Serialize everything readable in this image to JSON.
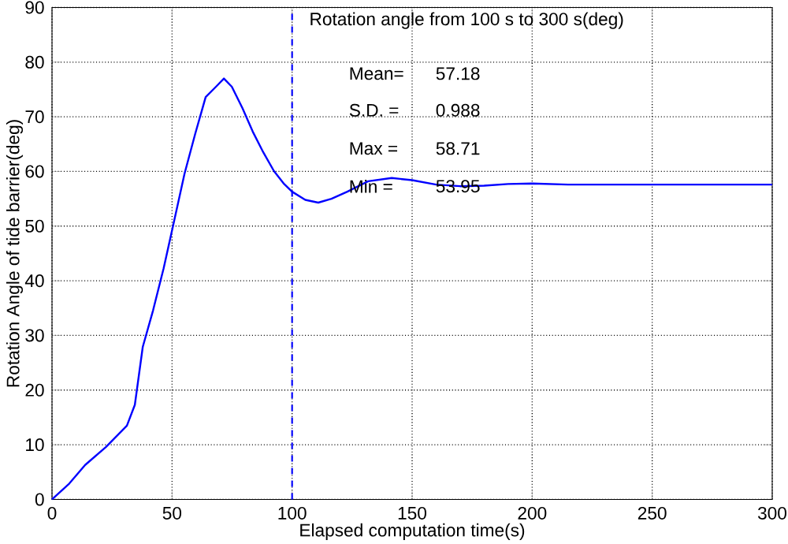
{
  "chart_data": {
    "type": "line",
    "xlabel": "Elapsed computation time(s)",
    "ylabel": "Rotation Angle of tide barrier(deg)",
    "x": [
      0,
      7.2,
      13.8,
      22.5,
      31.2,
      34.5,
      37.8,
      42.1,
      46.5,
      50.9,
      55.2,
      59.6,
      64,
      68.3,
      71.6,
      74.9,
      79.3,
      83.6,
      88,
      92.4,
      96.7,
      100,
      105.5,
      110.9,
      116.4,
      123,
      131.7,
      141.5,
      150,
      160,
      170,
      180,
      190,
      200,
      215,
      250,
      300
    ],
    "series": [
      {
        "color": "#0000ff",
        "values": [
          0,
          2.9,
          6.3,
          9.6,
          13.5,
          17.3,
          27.9,
          34.6,
          42.3,
          51,
          59.6,
          66.8,
          73.6,
          75.5,
          77,
          75.5,
          71.6,
          67.3,
          63.5,
          60.1,
          57.7,
          56.3,
          54.8,
          54.3,
          55,
          56.3,
          58.2,
          58.8,
          58.4,
          57.6,
          57.3,
          57.4,
          57.7,
          57.8,
          57.6,
          57.6,
          57.6
        ]
      }
    ],
    "xlim": [
      0,
      300
    ],
    "ylim": [
      0,
      90
    ],
    "xticks": [
      0,
      50,
      100,
      150,
      200,
      250,
      300
    ],
    "yticks": [
      0,
      10,
      20,
      30,
      40,
      50,
      60,
      70,
      80,
      90
    ],
    "grid": true,
    "line_style": "solid",
    "ref_lines": [
      {
        "axis": "x",
        "value": 100,
        "color": "#0000ff",
        "line_style": "dashed"
      }
    ],
    "annotations": [
      "Rotation angle from 100 s to 300 s(deg)",
      "Mean=",
      "57.18",
      "S.D. =",
      "0.988",
      "Max =",
      "58.71",
      "Min =",
      "53.95"
    ]
  }
}
